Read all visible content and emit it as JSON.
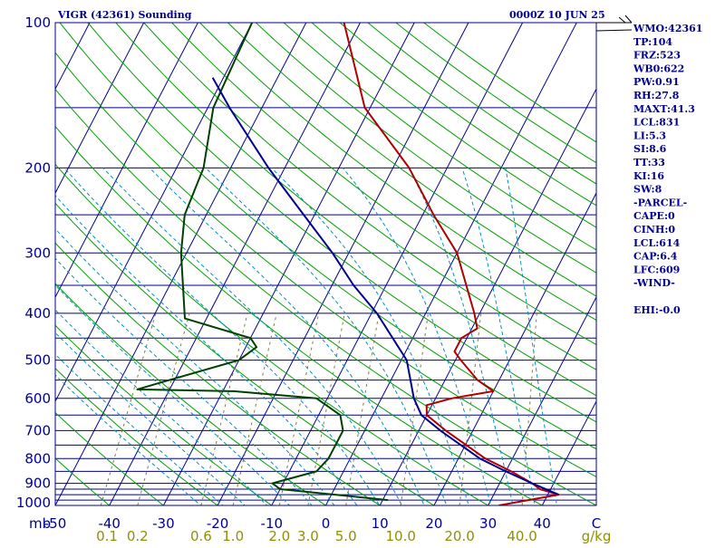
{
  "header": {
    "title": "VIGR (42361) Sounding",
    "datetime": "0000Z 10 JUN 25"
  },
  "indices": [
    "WMO:42361",
    "TP:104",
    "FRZ:523",
    "WB0:622",
    "PW:0.91",
    "RH:27.8",
    "MAXT:41.3",
    "LCL:831",
    "LI:5.3",
    "SI:8.6",
    "TT:33",
    "KI:16",
    "SW:8",
    "-PARCEL-",
    "CAPE:0",
    "CINH:0",
    "LCL:614",
    "CAP:6.4",
    "LFC:609",
    "-WIND-",
    "",
    "EHI:-0.0"
  ],
  "chart_data": {
    "type": "line",
    "chart_kind": "skew-t log-p sounding diagram",
    "title": "VIGR (42361) Sounding",
    "valid_time": "0000Z 10 JUN 25",
    "y_axis": {
      "label": "mb",
      "scale": "log",
      "range": [
        1000,
        100
      ],
      "tick_labels": [
        "100",
        "200",
        "300",
        "400",
        "500",
        "600",
        "700",
        "800",
        "900",
        "1000"
      ]
    },
    "x_axis": {
      "tick_labels": [
        "-50",
        "-40",
        "-30",
        "-20",
        "-10",
        "0",
        "10",
        "20",
        "30",
        "40",
        "C"
      ],
      "unit": "C"
    },
    "mixing_ratio_axis": {
      "tick_labels": [
        "0.1",
        "0.2",
        "0.6",
        "1.0",
        "2.0",
        "3.0",
        "5.0",
        "10.0",
        "20.0",
        "40.0",
        "g/kg"
      ],
      "unit": "g/kg"
    },
    "isobars_mb": [
      100,
      150,
      200,
      250,
      300,
      350,
      400,
      450,
      500,
      550,
      600,
      650,
      700,
      750,
      800,
      850,
      900,
      925,
      950,
      975,
      1000
    ],
    "series": [
      {
        "color": "#b00000",
        "points": [
          [
            1000,
            32
          ],
          [
            950,
            42
          ],
          [
            925,
            38
          ],
          [
            900,
            36
          ],
          [
            850,
            31
          ],
          [
            800,
            25
          ],
          [
            700,
            15
          ],
          [
            650,
            10
          ],
          [
            620,
            9
          ],
          [
            600,
            13
          ],
          [
            580,
            20
          ],
          [
            550,
            16
          ],
          [
            500,
            11
          ],
          [
            480,
            9
          ],
          [
            450,
            9
          ],
          [
            430,
            11
          ],
          [
            400,
            9
          ],
          [
            300,
            0
          ],
          [
            250,
            -8
          ],
          [
            200,
            -17
          ],
          [
            150,
            -31
          ],
          [
            100,
            -43
          ],
          [
            95,
            -44
          ]
        ]
      },
      {
        "color": "#004000",
        "points": [
          [
            975,
            11
          ],
          [
            925,
            -10
          ],
          [
            900,
            -12
          ],
          [
            850,
            -5
          ],
          [
            800,
            -4
          ],
          [
            700,
            -4
          ],
          [
            650,
            -6
          ],
          [
            600,
            -12
          ],
          [
            580,
            -28
          ],
          [
            575,
            -46
          ],
          [
            555,
            -42
          ],
          [
            500,
            -30
          ],
          [
            470,
            -28
          ],
          [
            450,
            -30
          ],
          [
            410,
            -44
          ],
          [
            300,
            -51
          ],
          [
            250,
            -54
          ],
          [
            200,
            -55
          ],
          [
            150,
            -59
          ],
          [
            100,
            -60
          ],
          [
            90,
            -60
          ]
        ]
      },
      {
        "color": "#000090",
        "points": [
          [
            950,
            42
          ],
          [
            900,
            36
          ],
          [
            850,
            30
          ],
          [
            800,
            24
          ],
          [
            700,
            14
          ],
          [
            650,
            9
          ],
          [
            600,
            6
          ],
          [
            500,
            1
          ],
          [
            400,
            -9
          ],
          [
            350,
            -16
          ],
          [
            300,
            -23
          ],
          [
            250,
            -32
          ],
          [
            200,
            -43
          ],
          [
            150,
            -56
          ],
          [
            130,
            -62
          ]
        ]
      }
    ],
    "wind_barb": {
      "pressure_mb": 100,
      "color": "#000000"
    }
  },
  "colors": {
    "isobar": "#000090",
    "isotherm": "#000090",
    "dry_adiabat": "#00a000",
    "moist_adiabat": "#0090c0",
    "mixing_ratio": "#808040",
    "frame": "#000090",
    "temp_label": "#000090",
    "mixing_label": "#909000"
  }
}
